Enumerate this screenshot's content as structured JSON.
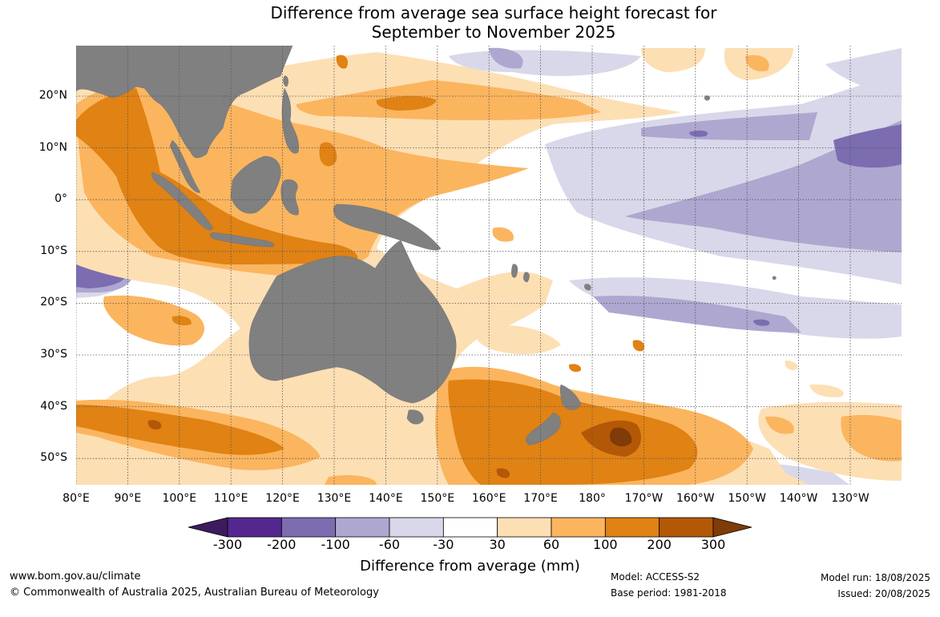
{
  "title_line1": "Difference from average sea surface height forecast for",
  "title_line2": "September to November 2025",
  "lat_labels": [
    "20°N",
    "10°N",
    "0°",
    "10°S",
    "20°S",
    "30°S",
    "40°S",
    "50°S"
  ],
  "lon_labels": [
    "80°E",
    "90°E",
    "100°E",
    "110°E",
    "120°E",
    "130°E",
    "140°E",
    "150°E",
    "160°E",
    "170°E",
    "180°",
    "170°W",
    "160°W",
    "150°W",
    "140°W",
    "130°W"
  ],
  "colorbar": {
    "title": "Difference from average (mm)",
    "ticks": [
      "-300",
      "-200",
      "-100",
      "-60",
      "-30",
      "30",
      "60",
      "100",
      "200",
      "300"
    ],
    "colors": [
      "#3d1b5e",
      "#54278f",
      "#7b6db0",
      "#aea7d0",
      "#d8d8ea",
      "#ffffff",
      "#fddfb4",
      "#fbb55f",
      "#e08214",
      "#b35806",
      "#7f3b08"
    ]
  },
  "footer": {
    "website": "www.bom.gov.au/climate",
    "copyright": "© Commonwealth of Australia 2025, Australian Bureau of Meteorology",
    "model": "Model: ACCESS-S2",
    "base_period": "Base period: 1981-2018",
    "model_run": "Model run: 18/08/2025",
    "issued": "Issued: 20/08/2025"
  }
}
